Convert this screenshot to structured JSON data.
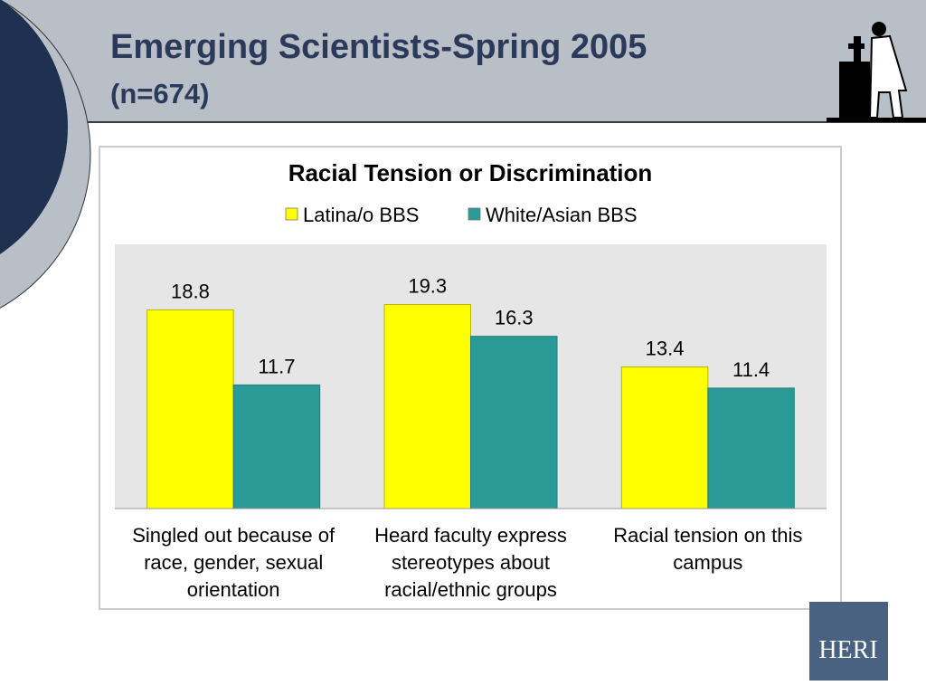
{
  "slide": {
    "title": "Emerging Scientists-Spring 2005",
    "subtitle": "(n=674)",
    "logo": "HERI"
  },
  "chart_data": {
    "type": "bar",
    "title": "Racial Tension or Discrimination",
    "categories": [
      "Singled out because of race, gender, sexual orientation",
      "Heard faculty express stereotypes about racial/ethnic groups",
      "Racial tension on this campus"
    ],
    "series": [
      {
        "name": "Latina/o BBS",
        "color": "#ffff00",
        "values": [
          18.8,
          19.3,
          13.4
        ]
      },
      {
        "name": "White/Asian BBS",
        "color": "#2a9a97",
        "values": [
          11.7,
          16.3,
          11.4
        ]
      }
    ],
    "ylim": [
      0,
      25
    ]
  }
}
